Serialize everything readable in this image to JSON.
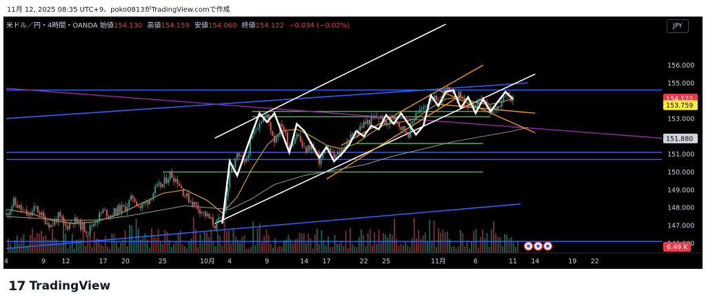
{
  "header": {
    "snapshot_text": "11月 12, 2025 08:35 UTC+9、poko0813がTradingView.comで作成"
  },
  "legend": {
    "symbol": "米ドル／円・4時間・OANDA",
    "open_label": "始値",
    "open_value": "154.130",
    "high_label": "高値",
    "high_value": "154.159",
    "low_label": "安値",
    "low_value": "154.060",
    "close_label": "終値",
    "close_value": "154.122",
    "change": "−0.034 (−0.02%)"
  },
  "currency_badge": "JPY",
  "brand": {
    "logo": "17",
    "name": "TradingView"
  },
  "colors": {
    "background": "#000000",
    "candle_up": "#26a69a",
    "candle_down": "#ef5350",
    "price_tag": "#f23645",
    "ma_fast": "#d4a017",
    "ma_slow": "#9e9e9e",
    "trend_blue": "#2962ff",
    "channel_orange": "#ff9800",
    "horizontal_green": "#4caf50",
    "purple_line": "#9c27b0",
    "wave_white": "#ffffff"
  },
  "chart_data": {
    "type": "candlestick",
    "symbol": "USD/JPY",
    "timeframe": "4h",
    "exchange": "OANDA",
    "y_ticks": [
      "156.000",
      "155.000",
      "154.000",
      "153.000",
      "152.000",
      "151.000",
      "150.000",
      "149.000",
      "148.000",
      "147.000",
      "146.000"
    ],
    "y_tick_values": [
      156,
      155,
      154,
      153,
      152,
      151,
      150,
      149,
      148,
      147,
      146
    ],
    "ylim": [
      145.45,
      157.8
    ],
    "x_ticks": [
      {
        "label": "4",
        "day": 0
      },
      {
        "label": "9",
        "day": 5
      },
      {
        "label": "12",
        "day": 8
      },
      {
        "label": "17",
        "day": 13
      },
      {
        "label": "20",
        "day": 16
      },
      {
        "label": "25",
        "day": 21
      },
      {
        "label": "10月",
        "day": 27
      },
      {
        "label": "4",
        "day": 30
      },
      {
        "label": "9",
        "day": 35
      },
      {
        "label": "14",
        "day": 40
      },
      {
        "label": "17",
        "day": 43
      },
      {
        "label": "22",
        "day": 48
      },
      {
        "label": "25",
        "day": 51
      },
      {
        "label": "11月",
        "day": 58
      },
      {
        "label": "6",
        "day": 63
      },
      {
        "label": "11",
        "day": 68
      },
      {
        "label": "14",
        "day": 71
      },
      {
        "label": "19",
        "day": 76
      },
      {
        "label": "22",
        "day": 79
      }
    ],
    "xlim_days": [
      0,
      88
    ],
    "price_labels": [
      {
        "text": "154.122",
        "sub": "02:24:09",
        "value": 154.122,
        "bg": "#f23645",
        "fg": "#ffffff"
      },
      {
        "text": "153.759",
        "value": 153.759,
        "bg": "#ffeb3b",
        "fg": "#000000"
      },
      {
        "text": "151.880",
        "value": 151.88,
        "bg": "#d1d4dc",
        "fg": "#000000"
      }
    ],
    "volume_label": "6.49 K",
    "price_path": [
      [
        0,
        147.6
      ],
      [
        1,
        148.3
      ],
      [
        2,
        147.9
      ],
      [
        3,
        147.5
      ],
      [
        4,
        148.0
      ],
      [
        5,
        147.4
      ],
      [
        6,
        147.0
      ],
      [
        7,
        147.5
      ],
      [
        8,
        146.9
      ],
      [
        9,
        147.3
      ],
      [
        10,
        147.0
      ],
      [
        11,
        146.7
      ],
      [
        12,
        147.3
      ],
      [
        13,
        147.8
      ],
      [
        14,
        147.6
      ],
      [
        15,
        147.9
      ],
      [
        16,
        148.0
      ],
      [
        17,
        148.6
      ],
      [
        18,
        148.0
      ],
      [
        19,
        148.4
      ],
      [
        20,
        149.0
      ],
      [
        21,
        149.3
      ],
      [
        22,
        149.9
      ],
      [
        23,
        149.5
      ],
      [
        24,
        148.7
      ],
      [
        25,
        148.3
      ],
      [
        26,
        147.9
      ],
      [
        27,
        147.5
      ],
      [
        28,
        147.0
      ],
      [
        29,
        147.4
      ],
      [
        30,
        149.8
      ],
      [
        31,
        150.9
      ],
      [
        32,
        150.4
      ],
      [
        33,
        152.0
      ],
      [
        34,
        152.9
      ],
      [
        35,
        153.1
      ],
      [
        36,
        151.8
      ],
      [
        37,
        152.7
      ],
      [
        38,
        151.4
      ],
      [
        39,
        152.2
      ],
      [
        40,
        151.2
      ],
      [
        41,
        151.5
      ],
      [
        42,
        150.6
      ],
      [
        43,
        151.4
      ],
      [
        44,
        150.8
      ],
      [
        45,
        151.2
      ],
      [
        46,
        151.8
      ],
      [
        47,
        152.3
      ],
      [
        48,
        152.7
      ],
      [
        49,
        152.9
      ],
      [
        50,
        153.1
      ],
      [
        51,
        152.6
      ],
      [
        52,
        153.2
      ],
      [
        53,
        152.5
      ],
      [
        54,
        152.2
      ],
      [
        55,
        153.4
      ],
      [
        56,
        153.5
      ],
      [
        57,
        154.3
      ],
      [
        58,
        153.8
      ],
      [
        59,
        154.7
      ],
      [
        60,
        154.2
      ],
      [
        61,
        154.3
      ],
      [
        62,
        153.4
      ],
      [
        63,
        153.8
      ],
      [
        64,
        154.0
      ],
      [
        65,
        153.3
      ],
      [
        66,
        153.7
      ],
      [
        67,
        154.5
      ],
      [
        68,
        154.1
      ]
    ],
    "ma_fast": [
      [
        0,
        147.9
      ],
      [
        3,
        147.7
      ],
      [
        6,
        147.3
      ],
      [
        9,
        147.1
      ],
      [
        12,
        147.2
      ],
      [
        15,
        147.6
      ],
      [
        18,
        148.2
      ],
      [
        21,
        148.8
      ],
      [
        24,
        149.0
      ],
      [
        27,
        148.4
      ],
      [
        29,
        147.7
      ],
      [
        31,
        148.6
      ],
      [
        33,
        150.2
      ],
      [
        35,
        151.5
      ],
      [
        37,
        152.3
      ],
      [
        39,
        152.4
      ],
      [
        41,
        152.0
      ],
      [
        43,
        151.5
      ],
      [
        45,
        151.3
      ],
      [
        47,
        151.6
      ],
      [
        49,
        152.2
      ],
      [
        51,
        152.7
      ],
      [
        53,
        152.8
      ],
      [
        55,
        153.0
      ],
      [
        57,
        153.6
      ],
      [
        59,
        154.1
      ],
      [
        61,
        154.2
      ],
      [
        63,
        153.9
      ],
      [
        65,
        153.8
      ],
      [
        67,
        154.0
      ],
      [
        68,
        154.1
      ]
    ],
    "ma_slow": [
      [
        0,
        147.5
      ],
      [
        4,
        147.4
      ],
      [
        8,
        147.3
      ],
      [
        12,
        147.3
      ],
      [
        16,
        147.5
      ],
      [
        20,
        147.8
      ],
      [
        24,
        148.1
      ],
      [
        27,
        148.0
      ],
      [
        30,
        147.9
      ],
      [
        33,
        148.5
      ],
      [
        36,
        149.3
      ],
      [
        40,
        149.8
      ],
      [
        44,
        150.1
      ],
      [
        48,
        150.4
      ],
      [
        52,
        150.9
      ],
      [
        56,
        151.3
      ],
      [
        60,
        151.7
      ],
      [
        64,
        152.0
      ],
      [
        68,
        152.3
      ],
      [
        70,
        152.5
      ]
    ],
    "wave": [
      [
        29,
        147.1
      ],
      [
        30,
        150.6
      ],
      [
        31,
        149.8
      ],
      [
        33,
        152.2
      ],
      [
        34,
        153.3
      ],
      [
        35,
        152.8
      ],
      [
        36,
        153.3
      ],
      [
        38,
        151.1
      ],
      [
        39,
        152.7
      ],
      [
        40,
        152.3
      ],
      [
        42,
        150.8
      ],
      [
        43,
        151.4
      ],
      [
        44,
        150.6
      ],
      [
        45,
        151.0
      ],
      [
        46,
        151.5
      ],
      [
        47,
        152.3
      ],
      [
        48,
        152.0
      ],
      [
        49,
        152.6
      ],
      [
        50,
        152.4
      ],
      [
        51,
        153.2
      ],
      [
        52,
        152.7
      ],
      [
        53,
        153.3
      ],
      [
        55,
        152.1
      ],
      [
        56,
        152.6
      ],
      [
        57,
        154.3
      ],
      [
        58,
        153.7
      ],
      [
        59,
        154.5
      ],
      [
        60,
        154.6
      ],
      [
        61,
        153.6
      ],
      [
        62,
        154.2
      ],
      [
        63,
        153.3
      ],
      [
        64,
        154.1
      ],
      [
        65,
        153.4
      ],
      [
        67,
        154.5
      ],
      [
        68,
        154.1
      ]
    ],
    "hlines": [
      {
        "value": 154.6,
        "from": 0,
        "to": 88,
        "color": "#2962ff"
      },
      {
        "value": 151.1,
        "from": 0,
        "to": 88,
        "color": "#2962ff"
      },
      {
        "value": 150.7,
        "from": 0,
        "to": 88,
        "color": "#2962ff"
      },
      {
        "value": 146.1,
        "from": 0,
        "to": 88,
        "color": "#2962ff"
      },
      {
        "value": 153.4,
        "from": 33,
        "to": 65,
        "color": "#4caf50"
      },
      {
        "value": 153.1,
        "from": 33,
        "to": 65,
        "color": "#4caf50"
      },
      {
        "value": 151.6,
        "from": 47,
        "to": 64,
        "color": "#4caf50"
      },
      {
        "value": 150.0,
        "from": 21,
        "to": 64,
        "color": "#4caf50"
      }
    ],
    "trendlines": [
      {
        "x1": 0,
        "y1": 145.7,
        "x2": 69,
        "y2": 148.2,
        "color": "#2962ff",
        "w": 1.6
      },
      {
        "x1": 0,
        "y1": 153.0,
        "x2": 70,
        "y2": 155.0,
        "color": "#2962ff",
        "w": 1.6
      },
      {
        "x1": 0,
        "y1": 154.7,
        "x2": 88,
        "y2": 151.9,
        "color": "#9c27b0",
        "w": 1.4
      },
      {
        "x1": 28,
        "y1": 147.1,
        "x2": 71,
        "y2": 155.5,
        "color": "#ffffff",
        "w": 1.6
      },
      {
        "x1": 28,
        "y1": 151.9,
        "x2": 59,
        "y2": 158.3,
        "color": "#ffffff",
        "w": 1.6
      },
      {
        "x1": 43,
        "y1": 149.6,
        "x2": 61,
        "y2": 154.3,
        "color": "#ff9800",
        "w": 1.4
      },
      {
        "x1": 45,
        "y1": 151.5,
        "x2": 64,
        "y2": 156.0,
        "color": "#ff9800",
        "w": 1.4
      },
      {
        "x1": 58,
        "y1": 154.6,
        "x2": 71,
        "y2": 152.2,
        "color": "#ff9800",
        "w": 1.4
      },
      {
        "x1": 58,
        "y1": 153.8,
        "x2": 71,
        "y2": 153.3,
        "color": "#ff9800",
        "w": 1.4
      }
    ],
    "flag_markers": 3
  }
}
